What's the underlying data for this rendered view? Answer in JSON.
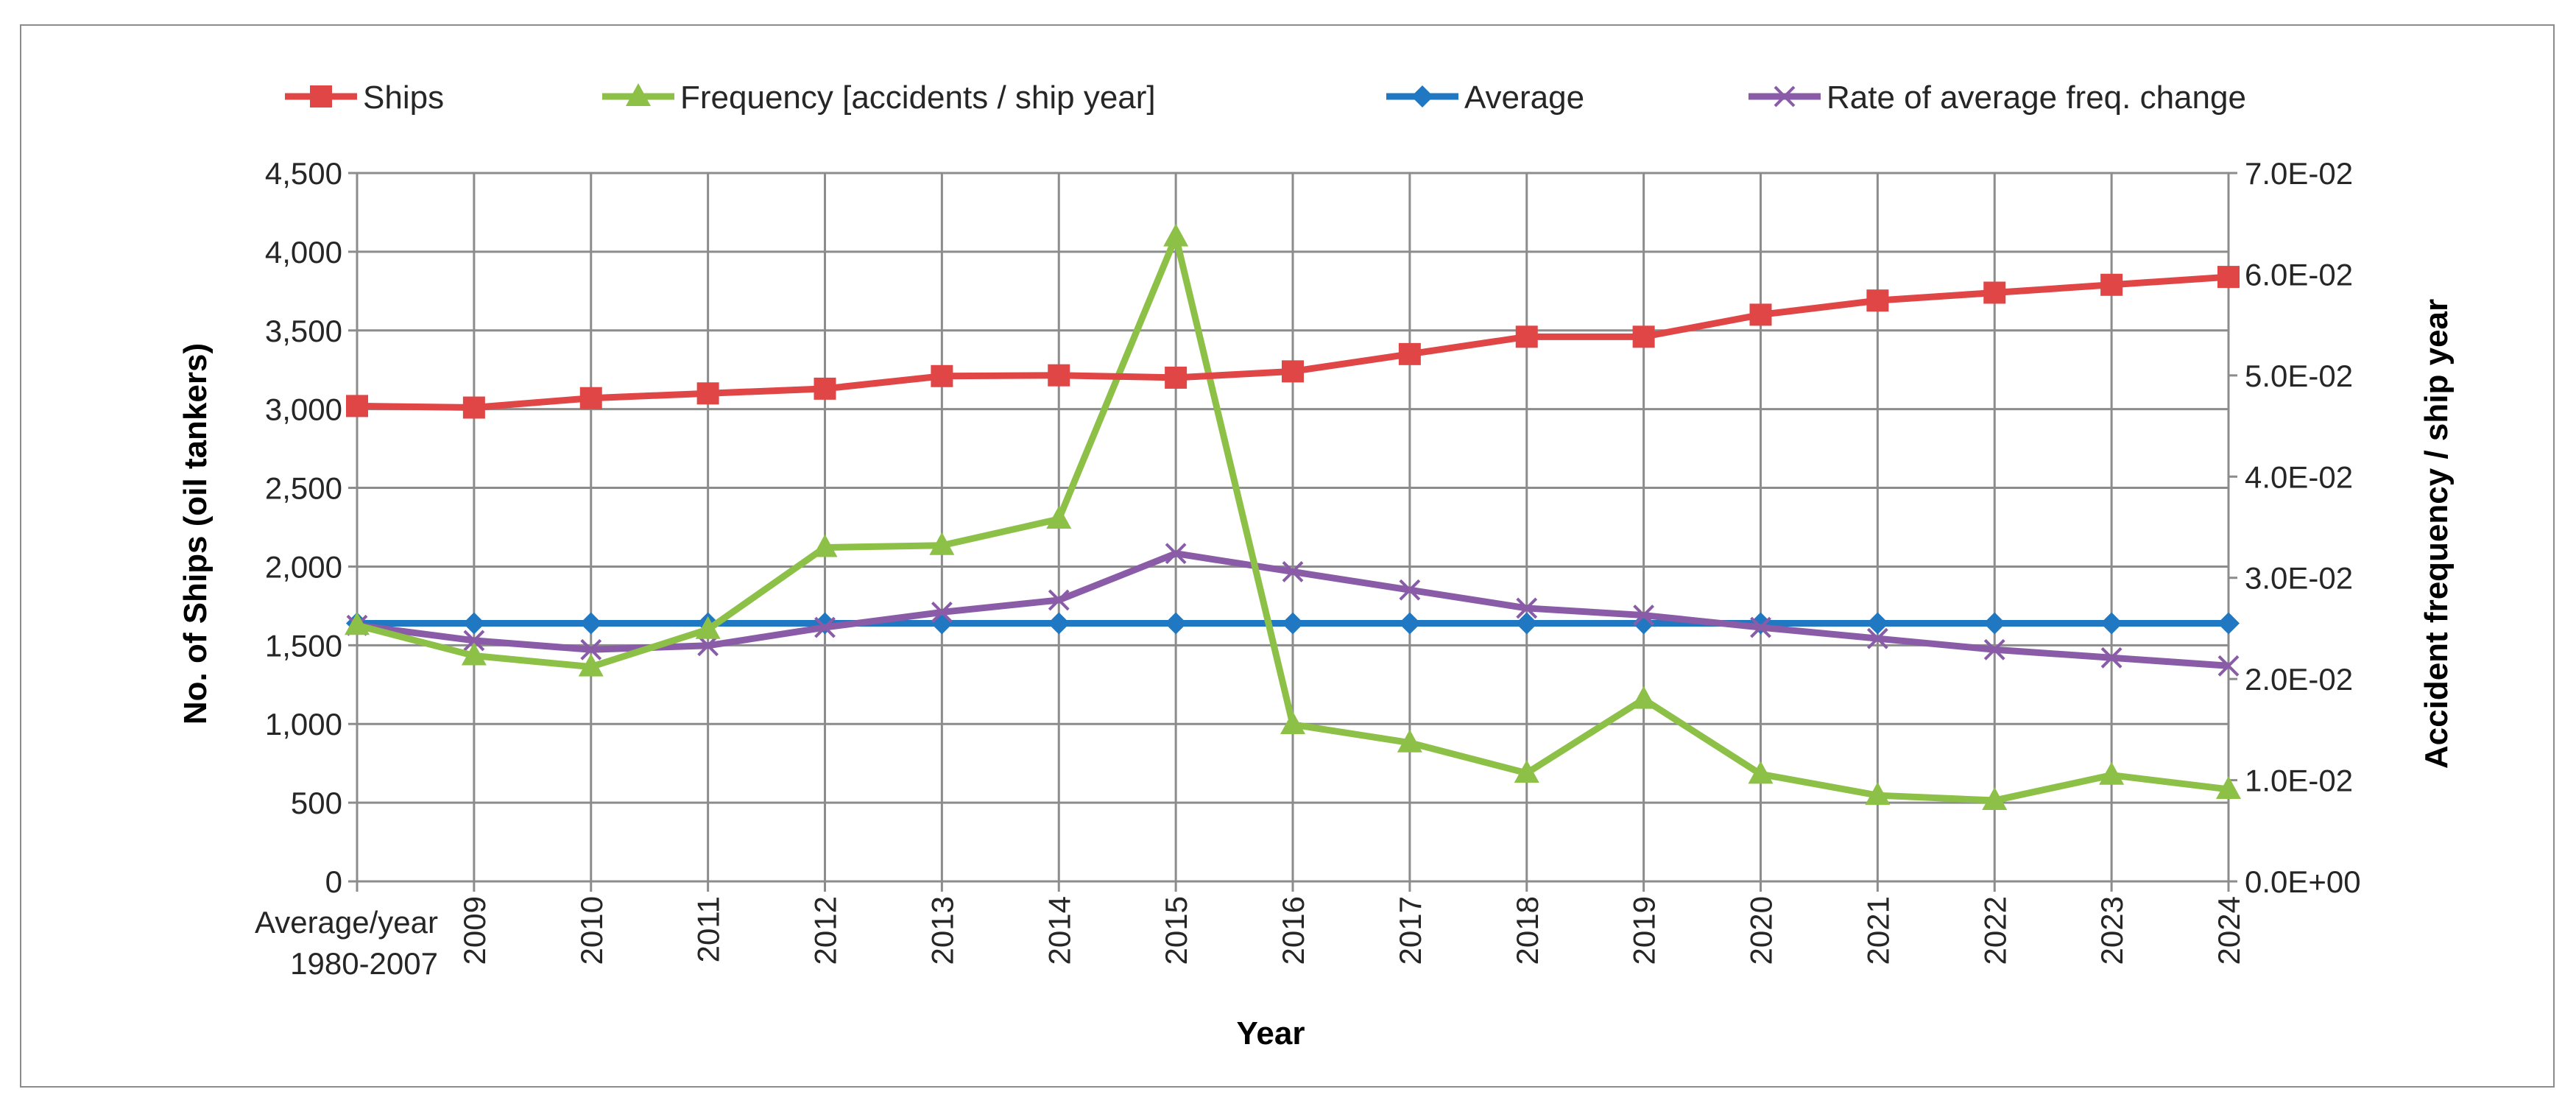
{
  "chart_data": {
    "type": "line",
    "categories": [
      "Average/year\n1980-2007",
      "2009",
      "2010",
      "2011",
      "2012",
      "2013",
      "2014",
      "2015",
      "2016",
      "2017",
      "2018",
      "2019",
      "2020",
      "2021",
      "2022",
      "2023",
      "2024"
    ],
    "xlabel": "Year",
    "ylabel": "No. of Ships (oil tankers)",
    "y2label": "Accident frequency / ship year",
    "ylim": [
      0,
      4500
    ],
    "y2lim": [
      0,
      0.07
    ],
    "yticks": [
      "0",
      "500",
      "1,000",
      "1,500",
      "2,000",
      "2,500",
      "3,000",
      "3,500",
      "4,000",
      "4,500"
    ],
    "y2ticks": [
      "0.0E+00",
      "1.0E-02",
      "2.0E-02",
      "3.0E-02",
      "4.0E-02",
      "5.0E-02",
      "6.0E-02",
      "7.0E-02"
    ],
    "grid": true,
    "legend_position": "top",
    "series": [
      {
        "name": "Ships",
        "axis": "left",
        "marker": "square",
        "color": "#e04646",
        "values": [
          3020,
          3010,
          3070,
          3100,
          3130,
          3210,
          3215,
          3200,
          3240,
          3350,
          3460,
          3460,
          3600,
          3690,
          3740,
          3790,
          3840
        ]
      },
      {
        "name": "Frequency [accidents / ship year]",
        "axis": "right",
        "marker": "triangle",
        "color": "#8cc046",
        "values": [
          0.0253,
          0.0223,
          0.0212,
          0.0249,
          0.033,
          0.0332,
          0.0358,
          0.0637,
          0.0155,
          0.0137,
          0.0107,
          0.018,
          0.0106,
          0.0085,
          0.008,
          0.0105,
          0.0091
        ]
      },
      {
        "name": "Average",
        "axis": "right",
        "marker": "diamond",
        "color": "#1f78c1",
        "values": [
          0.0255,
          0.0255,
          0.0255,
          0.0255,
          0.0255,
          0.0255,
          0.0255,
          0.0255,
          0.0255,
          0.0255,
          0.0255,
          0.0255,
          0.0255,
          0.0255,
          0.0255,
          0.0255,
          0.0255
        ]
      },
      {
        "name": "Rate of average freq. change",
        "axis": "right",
        "marker": "x",
        "color": "#8a5ca8",
        "values": [
          0.0253,
          0.0238,
          0.0229,
          0.0233,
          0.0251,
          0.0266,
          0.0278,
          0.0324,
          0.0306,
          0.0288,
          0.027,
          0.0263,
          0.0251,
          0.024,
          0.0229,
          0.0221,
          0.0213
        ]
      }
    ]
  }
}
